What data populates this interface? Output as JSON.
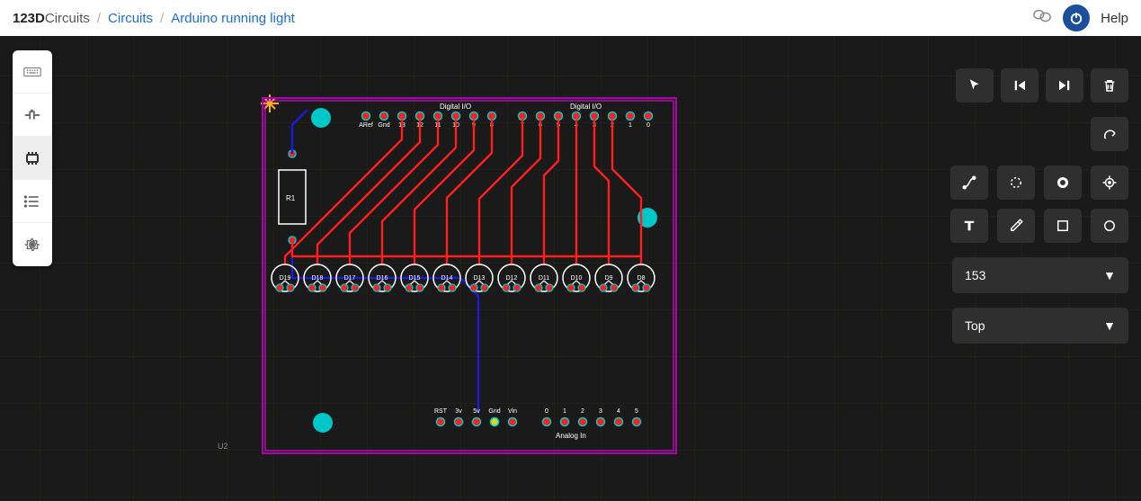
{
  "breadcrumb": {
    "logo_bold": "123D",
    "logo_light": "Circuits",
    "items": [
      "Circuits",
      "Arduino running light"
    ]
  },
  "topbar": {
    "help": "Help"
  },
  "left_tools": [
    {
      "name": "keyboard-icon",
      "active": false
    },
    {
      "name": "capacitor-icon",
      "active": false
    },
    {
      "name": "chip-icon",
      "active": true
    },
    {
      "name": "list-icon",
      "active": false
    },
    {
      "name": "gear-icon",
      "active": false
    }
  ],
  "right_top_row": [
    "cursor-icon",
    "step-back-icon",
    "step-forward-icon",
    "trash-icon"
  ],
  "right_redo": "redo-icon",
  "right_tools": [
    "route-icon",
    "dashed-circle-icon",
    "bold-ring-icon",
    "target-icon",
    "text-icon",
    "eyedrop-icon",
    "square-icon",
    "circle-icon"
  ],
  "selects": {
    "size": "153",
    "layer": "Top"
  },
  "pcb": {
    "board_color": "#ff00ff",
    "trace_color": "#ff1e1e",
    "blue_trace": "#1a1ae6",
    "pad_color": "#ff1e1e",
    "pad_ring": "#00c8c8",
    "mount_hole": "#00c8c8",
    "grid_minor": "#3a3020",
    "text_color": "#ffffff",
    "bg_color": "#1a1a1a",
    "u2_label": "U2",
    "r1_label": "R1",
    "top_section1": "Digital I/O",
    "top_section2": "Digital I/O",
    "top_labels": [
      "ARef",
      "Gnd",
      "13",
      "12",
      "11",
      "10",
      "9",
      "8",
      "7",
      "6",
      "5",
      "4",
      "3",
      "2",
      "1",
      "0"
    ],
    "leds": [
      "D19",
      "D18",
      "D17",
      "D16",
      "D15",
      "D14",
      "D13",
      "D12",
      "D11",
      "D10",
      "D9",
      "D8"
    ],
    "bottom_labels_left": [
      "RST",
      "3v",
      "5v",
      "Gnd",
      "Vin"
    ],
    "bottom_labels_right": [
      "0",
      "1",
      "2",
      "3",
      "4",
      "5"
    ],
    "bottom_section": "Analog In"
  }
}
